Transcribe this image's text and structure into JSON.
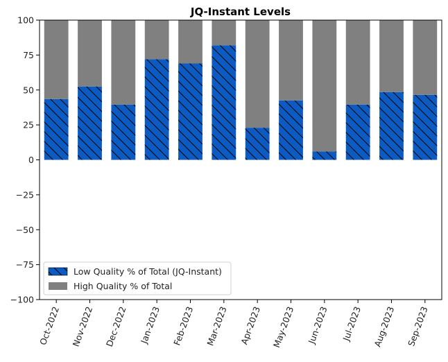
{
  "chart_data": {
    "type": "bar",
    "stacked": true,
    "title": "JQ-Instant Levels",
    "xlabel": "",
    "ylabel": "",
    "categories": [
      "Oct-2022",
      "Nov-2022",
      "Dec-2022",
      "Jan-2023",
      "Feb-2023",
      "Mar-2023",
      "Apr-2023",
      "May-2023",
      "Jun-2023",
      "Jul-2023",
      "Aug-2023",
      "Sep-2023"
    ],
    "series": [
      {
        "name": "Low Quality % of Total (JQ-Instant)",
        "color": "#0c5bc2",
        "hatch": "diagonal",
        "values": [
          43.5,
          52.5,
          39.5,
          72,
          69,
          82,
          23,
          42.5,
          6,
          39.5,
          48.5,
          46.5
        ]
      },
      {
        "name": "High Quality % of Total",
        "color": "#808080",
        "values": [
          56.5,
          47.5,
          60.5,
          28,
          31,
          18,
          77,
          57.5,
          94,
          60.5,
          51.5,
          53.5
        ]
      }
    ],
    "ylim": [
      -100,
      100
    ],
    "yticks": [
      100,
      75,
      50,
      25,
      0,
      -25,
      -50,
      -75,
      -100
    ],
    "ytick_labels": [
      "100",
      "75",
      "50",
      "25",
      "0",
      "−25",
      "−50",
      "−75",
      "−100"
    ],
    "grid": false,
    "legend": "bottom-left"
  }
}
